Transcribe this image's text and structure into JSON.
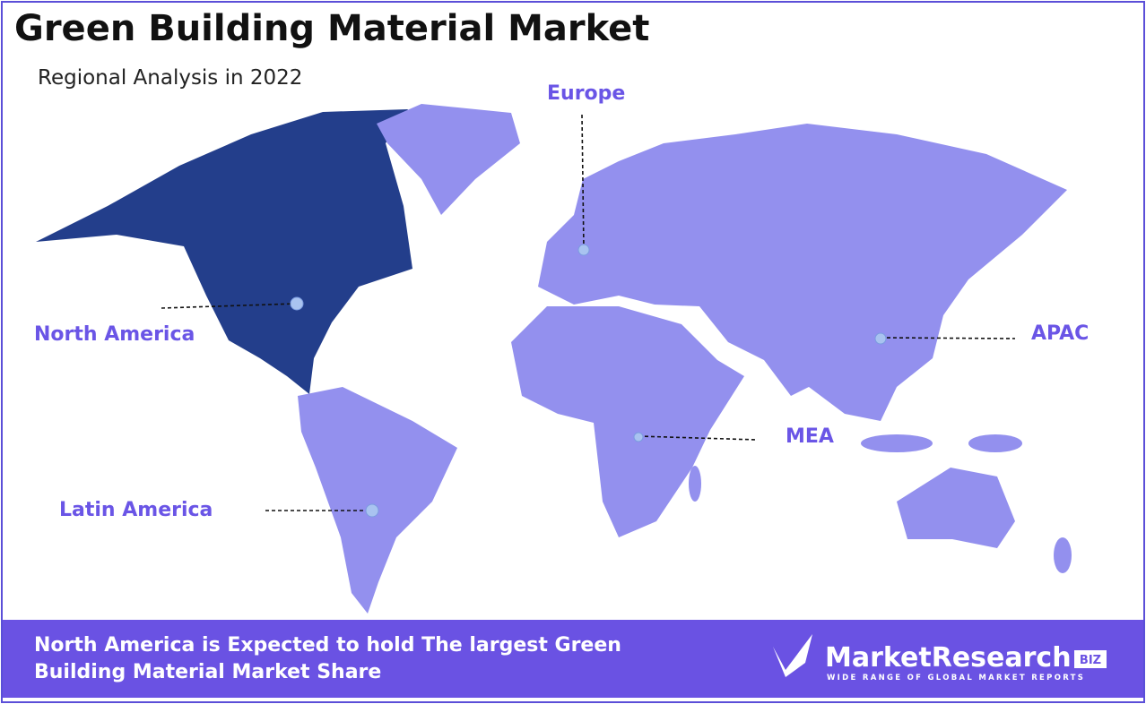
{
  "header": {
    "title": "Green Building Material Market",
    "subtitle": "Regional Analysis in 2022"
  },
  "regions": [
    {
      "label": "North America"
    },
    {
      "label": "Europe"
    },
    {
      "label": "APAC"
    },
    {
      "label": "MEA"
    },
    {
      "label": "Latin America"
    }
  ],
  "footer": {
    "text": "North America is Expected to hold The largest Green Building Material Market Share"
  },
  "logo": {
    "name": "MarketResearch",
    "badge": "BIZ",
    "tagline": "WIDE RANGE OF GLOBAL MARKET REPORTS"
  }
}
